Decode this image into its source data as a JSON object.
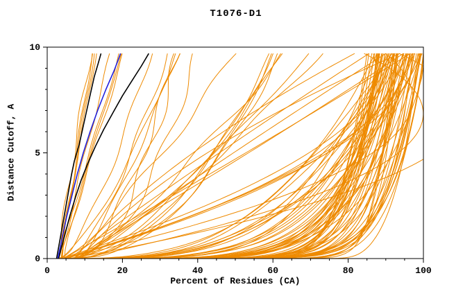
{
  "chart_data": {
    "type": "line",
    "title": "T1076-D1",
    "xlabel": "Percent of Residues (CA)",
    "ylabel": "Distance Cutoff, A",
    "xlim": [
      0,
      100
    ],
    "ylim": [
      0,
      10
    ],
    "x_ticks": [
      0,
      20,
      40,
      60,
      80,
      100
    ],
    "x_minor_step": 5,
    "y_ticks": [
      0,
      5,
      10
    ],
    "y_minor_step": 1,
    "grid": false,
    "legend": "none",
    "background": "#ffffff",
    "colors": {
      "models": "#ee8a00",
      "reference_black": "#000000",
      "reference_blue": "#2020dd",
      "axes": "#000000"
    },
    "series": [
      {
        "name": "black-curve-1",
        "color": "#000000",
        "width": 1.6,
        "points": [
          [
            2.5,
            0
          ],
          [
            3.5,
            1
          ],
          [
            4.5,
            2
          ],
          [
            5.5,
            3
          ],
          [
            6.5,
            4
          ],
          [
            7.2,
            4.6
          ],
          [
            8.5,
            5.4
          ],
          [
            9.5,
            6.2
          ],
          [
            10.5,
            7.0
          ],
          [
            11.5,
            7.8
          ],
          [
            12.5,
            8.6
          ],
          [
            13.5,
            9.2
          ],
          [
            14.3,
            9.7
          ]
        ]
      },
      {
        "name": "black-curve-2",
        "color": "#000000",
        "width": 1.6,
        "points": [
          [
            3,
            0
          ],
          [
            4.5,
            1
          ],
          [
            6,
            2
          ],
          [
            7.5,
            2.9
          ],
          [
            9,
            3.7
          ],
          [
            10.8,
            4.5
          ],
          [
            12.8,
            5.3
          ],
          [
            15,
            6.1
          ],
          [
            17.5,
            6.9
          ],
          [
            20,
            7.7
          ],
          [
            22.5,
            8.4
          ],
          [
            25,
            9.1
          ],
          [
            27,
            9.7
          ]
        ]
      },
      {
        "name": "blue-curve",
        "color": "#2020dd",
        "width": 1.6,
        "points": [
          [
            2.8,
            0
          ],
          [
            4,
            1
          ],
          [
            5.2,
            2
          ],
          [
            6.6,
            3
          ],
          [
            8,
            4
          ],
          [
            9.6,
            5
          ],
          [
            11.4,
            6
          ],
          [
            13.4,
            7
          ],
          [
            15.6,
            8
          ],
          [
            17.8,
            8.9
          ],
          [
            19.5,
            9.7
          ]
        ]
      }
    ],
    "model_curves": {
      "color": "#ee8a00",
      "count_estimate": 110,
      "y_max_drawn": 9.7,
      "families": [
        {
          "name": "steep-left",
          "shape": "power-xy",
          "count": 8,
          "seed": 11,
          "x0": [
            2.5,
            5
          ],
          "xtop": [
            11,
            22
          ],
          "exp": [
            0.85,
            1.25
          ],
          "wobble": [
            0.1,
            0.5
          ]
        },
        {
          "name": "mid-diagonal",
          "shape": "power-xy",
          "count": 16,
          "seed": 23,
          "x0": [
            3,
            8
          ],
          "xtop": [
            24,
            75
          ],
          "exp": [
            0.45,
            0.85
          ],
          "wobble": [
            0.3,
            1.2
          ]
        },
        {
          "name": "arc-to-topright",
          "shape": "arc",
          "count": 14,
          "seed": 37,
          "x0": [
            3,
            9
          ],
          "xmid": [
            30,
            70
          ],
          "ymid": [
            2.5,
            6
          ],
          "xtop": [
            78,
            99
          ]
        },
        {
          "name": "right-bundle",
          "shape": "power-yx",
          "count": 62,
          "seed": 53,
          "x0": [
            3,
            12
          ],
          "xtop": [
            86,
            100
          ],
          "pow": [
            2.5,
            12
          ],
          "wobble": [
            0.5,
            2.5
          ]
        },
        {
          "name": "late-flat",
          "shape": "power-yx",
          "count": 10,
          "seed": 71,
          "x0": [
            30,
            68
          ],
          "xtop": [
            92,
            100
          ],
          "pow": [
            3,
            9
          ],
          "wobble": [
            0.3,
            1.5
          ]
        }
      ]
    }
  }
}
